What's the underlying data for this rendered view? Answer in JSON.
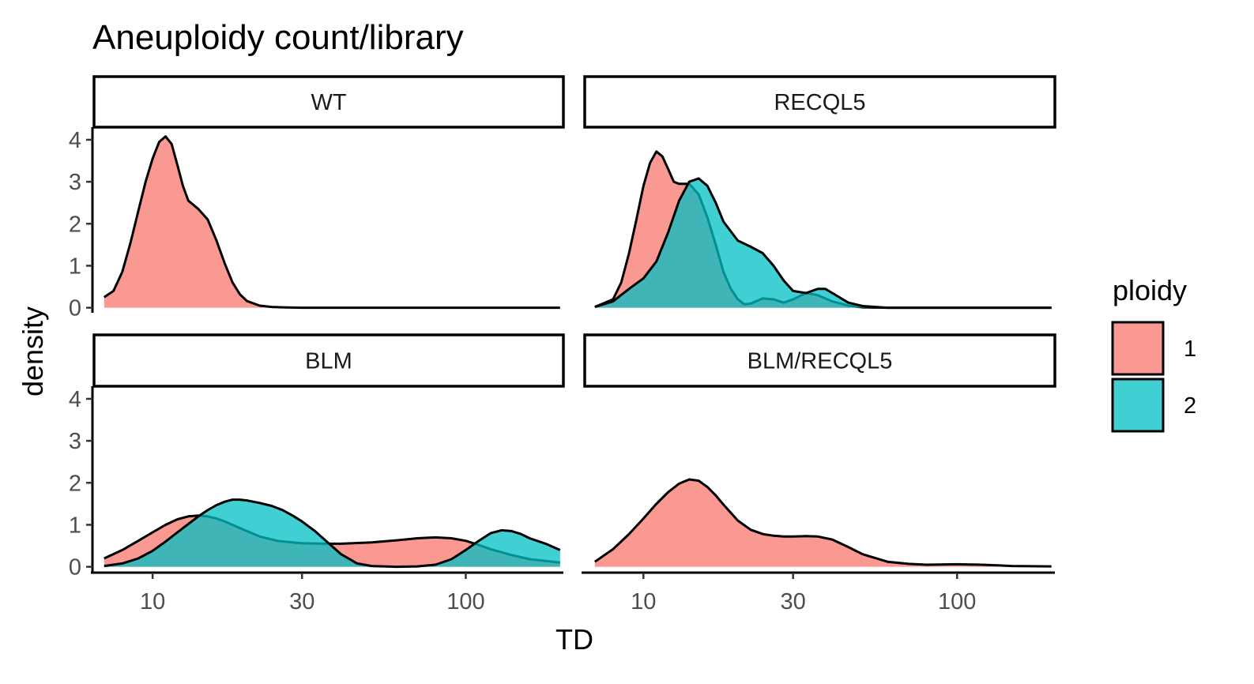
{
  "chart_data": {
    "type": "area",
    "subtype": "density",
    "title": "Aneuploidy count/library",
    "xlabel": "TD",
    "ylabel": "density",
    "x_scale": "log10",
    "xlim": [
      6.5,
      205
    ],
    "ylim": [
      -0.12,
      4.3
    ],
    "x_ticks": [
      10,
      30,
      100
    ],
    "x_tick_labels": [
      "10",
      "30",
      "100"
    ],
    "y_ticks": [
      0,
      1,
      2,
      3,
      4
    ],
    "y_tick_labels": [
      "0",
      "1",
      "2",
      "3",
      "4"
    ],
    "grid": false,
    "colors": {
      "1": "#F8766D",
      "2": "#00BFC4",
      "outline": "#000000"
    },
    "fill_alpha": 0.75,
    "legend": {
      "title": "ploidy",
      "position": "right",
      "entries": [
        {
          "label": "1",
          "color": "#F8766D"
        },
        {
          "label": "2",
          "color": "#00BFC4"
        }
      ]
    },
    "panels": [
      {
        "label": "WT",
        "series": [
          {
            "name": "1",
            "x": [
              7,
              7.5,
              8,
              8.5,
              9,
              9.5,
              10,
              10.5,
              11,
              11.5,
              12,
              12.5,
              13,
              14,
              15,
              16,
              17,
              18,
              19,
              20,
              22,
              24,
              26,
              30,
              40,
              60,
              100,
              150,
              200
            ],
            "y": [
              0.25,
              0.4,
              0.85,
              1.55,
              2.3,
              3.0,
              3.55,
              3.95,
              4.08,
              3.9,
              3.4,
              2.9,
              2.55,
              2.35,
              2.1,
              1.6,
              1.05,
              0.6,
              0.32,
              0.16,
              0.05,
              0.02,
              0.01,
              0,
              0,
              0,
              0,
              0,
              0
            ]
          }
        ]
      },
      {
        "label": "RECQL5",
        "series": [
          {
            "name": "1",
            "x": [
              7,
              8,
              8.5,
              9,
              9.5,
              10,
              10.5,
              11,
              11.5,
              12,
              12.5,
              13,
              14,
              15,
              16,
              17,
              18,
              19,
              20,
              21,
              22,
              24,
              26,
              28,
              30,
              33,
              36,
              40,
              45,
              50,
              60,
              80,
              100,
              150,
              200
            ],
            "y": [
              0.02,
              0.2,
              0.6,
              1.3,
              2.1,
              2.9,
              3.45,
              3.72,
              3.6,
              3.3,
              3.0,
              2.95,
              2.95,
              2.7,
              2.15,
              1.5,
              0.85,
              0.45,
              0.2,
              0.08,
              0.1,
              0.22,
              0.2,
              0.12,
              0.2,
              0.35,
              0.3,
              0.15,
              0.05,
              0.01,
              0,
              0,
              0,
              0,
              0
            ]
          },
          {
            "name": "2",
            "x": [
              7,
              8,
              9,
              10,
              11,
              12,
              13,
              14,
              15,
              16,
              17,
              18,
              20,
              22,
              24,
              26,
              28,
              30,
              33,
              36,
              38,
              40,
              45,
              50,
              55,
              60,
              70,
              80,
              100,
              150,
              200
            ],
            "y": [
              0.02,
              0.15,
              0.45,
              0.7,
              1.1,
              1.8,
              2.55,
              3.0,
              3.08,
              2.9,
              2.5,
              2.05,
              1.6,
              1.45,
              1.3,
              1.0,
              0.65,
              0.4,
              0.35,
              0.45,
              0.45,
              0.35,
              0.12,
              0.04,
              0.02,
              0,
              0,
              0,
              0,
              0,
              0
            ]
          }
        ]
      },
      {
        "label": "BLM",
        "series": [
          {
            "name": "1",
            "x": [
              7,
              8,
              9,
              10,
              11,
              12,
              13,
              14,
              15,
              16,
              17,
              18,
              20,
              22,
              25,
              28,
              30,
              35,
              40,
              50,
              60,
              70,
              80,
              90,
              100,
              110,
              120,
              140,
              160,
              200
            ],
            "y": [
              0.2,
              0.4,
              0.62,
              0.82,
              1.0,
              1.13,
              1.2,
              1.22,
              1.2,
              1.15,
              1.08,
              1.0,
              0.85,
              0.72,
              0.62,
              0.58,
              0.56,
              0.55,
              0.55,
              0.58,
              0.63,
              0.68,
              0.7,
              0.68,
              0.62,
              0.52,
              0.42,
              0.28,
              0.18,
              0.1
            ]
          },
          {
            "name": "2",
            "x": [
              7,
              8,
              9,
              10,
              11,
              12,
              13,
              14,
              15,
              16,
              17,
              18,
              19,
              20,
              22,
              24,
              26,
              28,
              30,
              33,
              36,
              40,
              45,
              50,
              55,
              60,
              70,
              80,
              90,
              100,
              110,
              120,
              130,
              140,
              150,
              160,
              180,
              200
            ],
            "y": [
              0.02,
              0.08,
              0.2,
              0.38,
              0.6,
              0.82,
              1.02,
              1.2,
              1.35,
              1.47,
              1.55,
              1.6,
              1.6,
              1.58,
              1.52,
              1.45,
              1.35,
              1.22,
              1.08,
              0.85,
              0.6,
              0.3,
              0.08,
              0.02,
              0.01,
              0,
              0.01,
              0.05,
              0.18,
              0.4,
              0.62,
              0.8,
              0.87,
              0.85,
              0.78,
              0.68,
              0.55,
              0.4
            ]
          }
        ]
      },
      {
        "label": "BLM/RECQL5",
        "series": [
          {
            "name": "1",
            "x": [
              7,
              8,
              9,
              10,
              11,
              12,
              13,
              14,
              15,
              16,
              17,
              18,
              20,
              22,
              24,
              26,
              28,
              30,
              33,
              36,
              40,
              45,
              50,
              60,
              70,
              80,
              100,
              120,
              150,
              200
            ],
            "y": [
              0.12,
              0.42,
              0.78,
              1.15,
              1.5,
              1.78,
              1.98,
              2.08,
              2.05,
              1.9,
              1.7,
              1.48,
              1.1,
              0.88,
              0.78,
              0.74,
              0.72,
              0.72,
              0.73,
              0.72,
              0.65,
              0.47,
              0.3,
              0.12,
              0.07,
              0.05,
              0.06,
              0.05,
              0.02,
              0.01
            ]
          }
        ]
      }
    ]
  }
}
